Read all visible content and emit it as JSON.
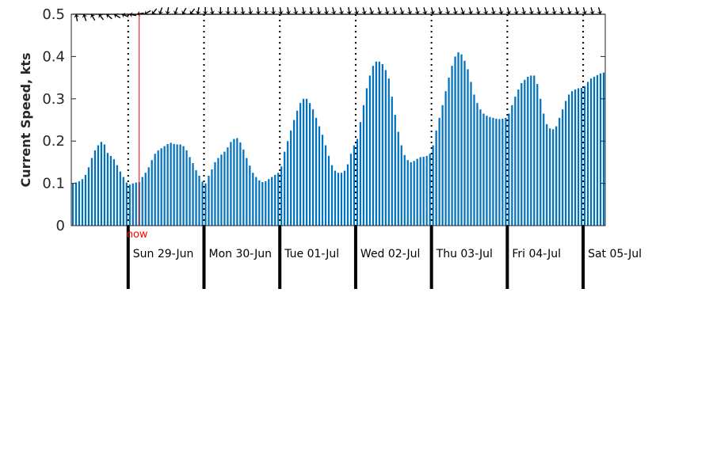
{
  "chart_data": {
    "type": "bar",
    "ylabel": "Current Speed, kts",
    "ylim": [
      0,
      0.5
    ],
    "yticks": [
      "0",
      "0.1",
      "0.2",
      "0.3",
      "0.4",
      "0.5"
    ],
    "bar_color": "#0072bd",
    "now_color": "#ff0000",
    "now_label": "now",
    "now_hour": 3.5,
    "day_start_hour": -18,
    "day_labels": [
      "Sun 29-Jun",
      "Mon 30-Jun",
      "Tue 01-Jul",
      "Wed 02-Jul",
      "Thu 03-Jul",
      "Fri 04-Jul",
      "Sat 05-Jul"
    ],
    "values": [
      0.1,
      0.102,
      0.105,
      0.11,
      0.12,
      0.138,
      0.16,
      0.178,
      0.19,
      0.198,
      0.192,
      0.172,
      0.165,
      0.157,
      0.143,
      0.128,
      0.115,
      0.102,
      0.097,
      0.1,
      0.102,
      0.103,
      0.115,
      0.125,
      0.138,
      0.155,
      0.17,
      0.178,
      0.183,
      0.188,
      0.193,
      0.196,
      0.193,
      0.192,
      0.192,
      0.188,
      0.178,
      0.162,
      0.148,
      0.131,
      0.118,
      0.104,
      0.1,
      0.118,
      0.133,
      0.15,
      0.16,
      0.168,
      0.175,
      0.185,
      0.198,
      0.205,
      0.207,
      0.197,
      0.18,
      0.16,
      0.142,
      0.125,
      0.115,
      0.107,
      0.103,
      0.105,
      0.11,
      0.115,
      0.12,
      0.125,
      0.14,
      0.175,
      0.2,
      0.225,
      0.25,
      0.272,
      0.29,
      0.3,
      0.3,
      0.29,
      0.275,
      0.255,
      0.235,
      0.215,
      0.19,
      0.165,
      0.143,
      0.13,
      0.125,
      0.125,
      0.13,
      0.145,
      0.17,
      0.19,
      0.205,
      0.245,
      0.285,
      0.325,
      0.355,
      0.378,
      0.388,
      0.388,
      0.382,
      0.368,
      0.348,
      0.305,
      0.262,
      0.222,
      0.19,
      0.167,
      0.155,
      0.15,
      0.153,
      0.158,
      0.162,
      0.163,
      0.165,
      0.17,
      0.19,
      0.225,
      0.255,
      0.285,
      0.318,
      0.35,
      0.378,
      0.4,
      0.41,
      0.405,
      0.39,
      0.37,
      0.34,
      0.31,
      0.29,
      0.275,
      0.265,
      0.26,
      0.257,
      0.255,
      0.253,
      0.252,
      0.253,
      0.255,
      0.265,
      0.285,
      0.305,
      0.322,
      0.337,
      0.345,
      0.352,
      0.355,
      0.355,
      0.335,
      0.3,
      0.265,
      0.24,
      0.23,
      0.228,
      0.235,
      0.255,
      0.275,
      0.295,
      0.31,
      0.318,
      0.322,
      0.325,
      0.326,
      0.33,
      0.34,
      0.348,
      0.352,
      0.356,
      0.36,
      0.362
    ],
    "directions_deg": [
      170,
      160,
      150,
      140,
      130,
      120,
      110,
      100,
      80,
      60,
      40,
      20,
      10,
      20,
      30,
      40,
      10,
      0,
      345,
      0,
      0,
      355,
      350,
      350,
      355,
      355,
      355,
      350,
      350,
      345,
      350,
      350,
      350,
      350,
      345,
      345,
      350,
      345,
      345,
      340,
      345,
      345,
      345,
      340,
      345,
      345,
      345,
      345,
      345,
      345,
      345,
      340,
      345,
      345,
      345,
      345,
      345,
      345,
      345,
      345,
      345,
      345,
      345,
      345,
      345,
      345,
      345,
      345,
      345,
      345
    ]
  }
}
